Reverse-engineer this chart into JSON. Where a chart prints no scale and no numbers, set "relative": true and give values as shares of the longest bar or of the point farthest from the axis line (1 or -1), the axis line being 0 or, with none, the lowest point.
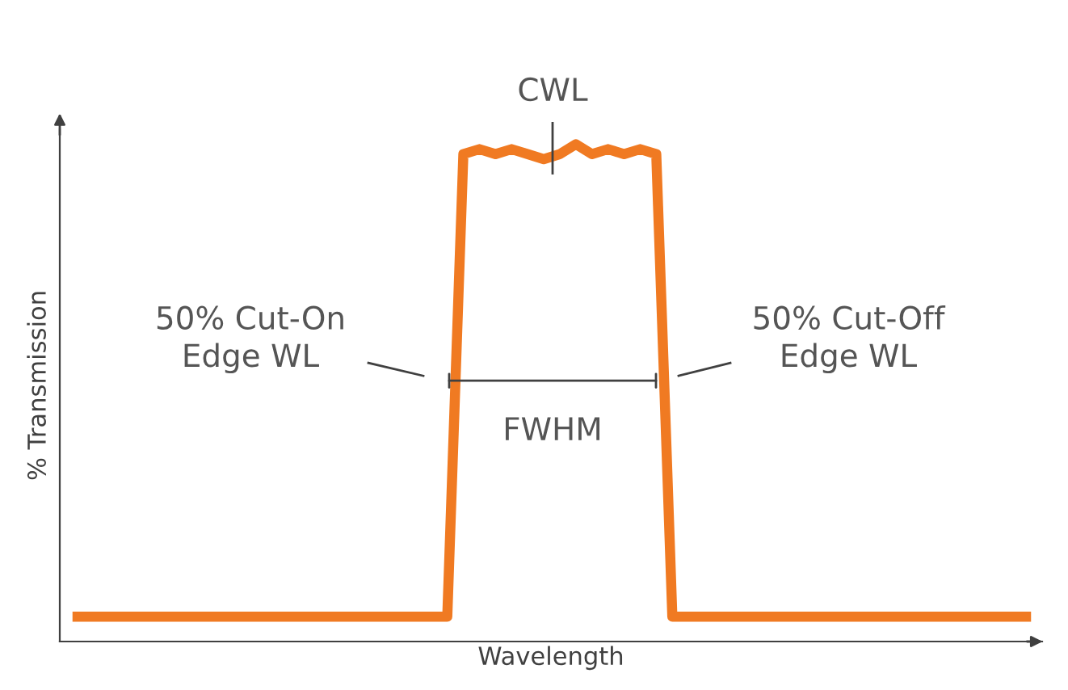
{
  "chart_data": {
    "type": "line",
    "relative": true,
    "xlabel": "Wavelength",
    "ylabel": "% Transmission",
    "marker": "none",
    "line_style": "solid",
    "categories": [
      null,
      null,
      null,
      null,
      null,
      null,
      null,
      null,
      null,
      null,
      null,
      null,
      null,
      null,
      null,
      null,
      null,
      null,
      null,
      null,
      null,
      null,
      null,
      null,
      null,
      null,
      null,
      null,
      null,
      null,
      null,
      null,
      null,
      null,
      null,
      null,
      null,
      null,
      null,
      null,
      null,
      null,
      null,
      null,
      null,
      null,
      null,
      null,
      null,
      null,
      null,
      null,
      null,
      null,
      null,
      null,
      null,
      null,
      null,
      null
    ],
    "series": [
      {
        "color": "#f07a22",
        "values": [
          0.05,
          0.05,
          0.05,
          0.05,
          0.05,
          0.05,
          0.05,
          0.05,
          0.05,
          0.05,
          0.05,
          0.05,
          0.05,
          0.05,
          0.05,
          0.05,
          0.05,
          0.05,
          0.05,
          0.05,
          0.05,
          0.05,
          0.05,
          0.05,
          0.98,
          0.99,
          0.98,
          0.99,
          0.98,
          0.97,
          0.98,
          1,
          0.98,
          0.99,
          0.98,
          0.99,
          0.98,
          0.05,
          0.05,
          0.05,
          0.05,
          0.05,
          0.05,
          0.05,
          0.05,
          0.05,
          0.05,
          0.05,
          0.05,
          0.05,
          0.05,
          0.05,
          0.05,
          0.05,
          0.05,
          0.05,
          0.05,
          0.05,
          0.05,
          0.05
        ]
      }
    ],
    "annotations": [
      "CWL",
      "50% Cut-On\nEdge WL",
      "50% Cut-Off\nEdge WL",
      "FWHM"
    ]
  }
}
